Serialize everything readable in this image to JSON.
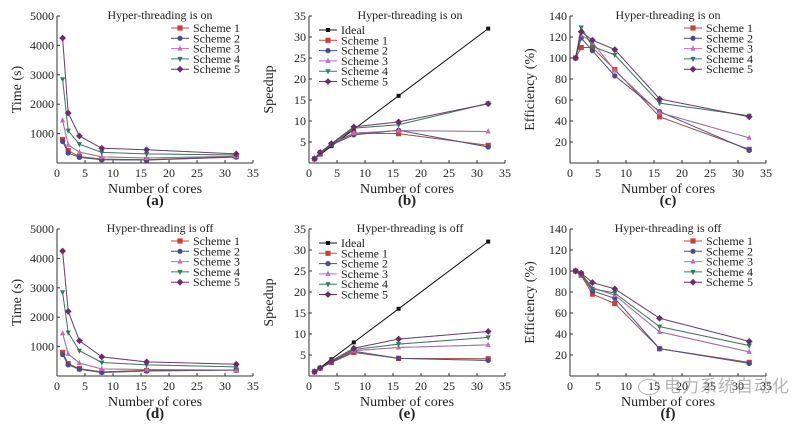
{
  "figure": {
    "watermark": "电力系统自动化"
  },
  "chart_data": [
    {
      "id": "a",
      "type": "line",
      "panel_label": "(a)",
      "title": "Hyper-threading is on",
      "xlabel": "Number of cores",
      "ylabel": "Time (s)",
      "xlim": [
        0,
        35
      ],
      "ylim": [
        0,
        5000
      ],
      "xticks": [
        0,
        5,
        10,
        15,
        20,
        25,
        30,
        35
      ],
      "yticks": [
        1000,
        2000,
        3000,
        4000,
        5000
      ],
      "legend_position": "top-right",
      "x": [
        1,
        2,
        4,
        8,
        16,
        32
      ],
      "series": [
        {
          "name": "Scheme 1",
          "color": "#c8423c",
          "marker": "square",
          "values": [
            800,
            420,
            220,
            130,
            110,
            220
          ]
        },
        {
          "name": "Scheme 2",
          "color": "#4a4a8c",
          "marker": "circle",
          "values": [
            730,
            340,
            190,
            110,
            100,
            200
          ]
        },
        {
          "name": "Scheme 3",
          "color": "#c46ab8",
          "marker": "triangle-up",
          "values": [
            1450,
            620,
            370,
            210,
            170,
            230
          ]
        },
        {
          "name": "Scheme 4",
          "color": "#2e7d5b",
          "marker": "triangle-down",
          "values": [
            2850,
            1100,
            640,
            360,
            310,
            270
          ]
        },
        {
          "name": "Scheme 5",
          "color": "#6b2c6b",
          "marker": "diamond",
          "values": [
            4250,
            1700,
            920,
            500,
            450,
            310
          ]
        }
      ]
    },
    {
      "id": "b",
      "type": "line",
      "panel_label": "(b)",
      "title": "Hyper-threading is on",
      "xlabel": "Number of cores",
      "ylabel": "Speedup",
      "xlim": [
        0,
        35
      ],
      "ylim": [
        0,
        35
      ],
      "xticks": [
        0,
        5,
        10,
        15,
        20,
        25,
        30,
        35
      ],
      "yticks": [
        5,
        10,
        15,
        20,
        25,
        30,
        35
      ],
      "legend_position": "top-left",
      "x": [
        1,
        2,
        4,
        8,
        16,
        32
      ],
      "series": [
        {
          "name": "Ideal",
          "color": "#111111",
          "marker": "square-small",
          "values": [
            1,
            2,
            4,
            8,
            16,
            32
          ]
        },
        {
          "name": "Scheme 1",
          "color": "#c8423c",
          "marker": "square",
          "values": [
            1,
            2.2,
            4.4,
            7.1,
            7.0,
            4.2
          ]
        },
        {
          "name": "Scheme 2",
          "color": "#4a4a8c",
          "marker": "circle",
          "values": [
            1,
            2.4,
            4.3,
            6.7,
            7.8,
            3.8
          ]
        },
        {
          "name": "Scheme 3",
          "color": "#c46ab8",
          "marker": "triangle-up",
          "values": [
            1,
            2.4,
            4.6,
            7.1,
            7.7,
            7.5
          ]
        },
        {
          "name": "Scheme 4",
          "color": "#2e7d5b",
          "marker": "triangle-down",
          "values": [
            1,
            2.6,
            4.4,
            8.3,
            9.1,
            14.2
          ]
        },
        {
          "name": "Scheme 5",
          "color": "#6b2c6b",
          "marker": "diamond",
          "values": [
            1,
            2.5,
            4.6,
            8.6,
            9.8,
            14.1
          ]
        }
      ]
    },
    {
      "id": "c",
      "type": "line",
      "panel_label": "(c)",
      "title": "Hyper-threading is on",
      "xlabel": "Number of cores",
      "ylabel": "Efficiency (%)",
      "xlim": [
        0,
        35
      ],
      "ylim": [
        0,
        140
      ],
      "xticks": [
        0,
        5,
        10,
        15,
        20,
        25,
        30,
        35
      ],
      "yticks": [
        20,
        40,
        60,
        80,
        100,
        120,
        140
      ],
      "legend_position": "top-right",
      "x": [
        1,
        2,
        4,
        8,
        16,
        32
      ],
      "series": [
        {
          "name": "Scheme 1",
          "color": "#c8423c",
          "marker": "square",
          "values": [
            100,
            110,
            110,
            89,
            44,
            13
          ]
        },
        {
          "name": "Scheme 2",
          "color": "#4a4a8c",
          "marker": "circle",
          "values": [
            100,
            119,
            107,
            83,
            49,
            12
          ]
        },
        {
          "name": "Scheme 3",
          "color": "#c46ab8",
          "marker": "triangle-up",
          "values": [
            100,
            122,
            115,
            88,
            48,
            24
          ]
        },
        {
          "name": "Scheme 4",
          "color": "#2e7d5b",
          "marker": "triangle-down",
          "values": [
            100,
            129,
            111,
            103,
            57,
            45
          ]
        },
        {
          "name": "Scheme 5",
          "color": "#6b2c6b",
          "marker": "diamond",
          "values": [
            100,
            125,
            117,
            108,
            61,
            44
          ]
        }
      ]
    },
    {
      "id": "d",
      "type": "line",
      "panel_label": "(d)",
      "title": "Hyper-threading is off",
      "xlabel": "Number of cores",
      "ylabel": "Time (s)",
      "xlim": [
        0,
        35
      ],
      "ylim": [
        0,
        5000
      ],
      "xticks": [
        0,
        5,
        10,
        15,
        20,
        25,
        30,
        35
      ],
      "yticks": [
        1000,
        2000,
        3000,
        4000,
        5000
      ],
      "legend_position": "top-right",
      "x": [
        1,
        2,
        4,
        8,
        16,
        32
      ],
      "series": [
        {
          "name": "Scheme 1",
          "color": "#c8423c",
          "marker": "square",
          "values": [
            800,
            420,
            250,
            140,
            190,
            200
          ]
        },
        {
          "name": "Scheme 2",
          "color": "#4a4a8c",
          "marker": "circle",
          "values": [
            730,
            380,
            230,
            120,
            170,
            200
          ]
        },
        {
          "name": "Scheme 3",
          "color": "#c46ab8",
          "marker": "triangle-up",
          "values": [
            1450,
            750,
            440,
            240,
            220,
            200
          ]
        },
        {
          "name": "Scheme 4",
          "color": "#2e7d5b",
          "marker": "triangle-down",
          "values": [
            2850,
            1480,
            860,
            460,
            380,
            310
          ]
        },
        {
          "name": "Scheme 5",
          "color": "#6b2c6b",
          "marker": "diamond",
          "values": [
            4250,
            2200,
            1200,
            650,
            480,
            400
          ]
        }
      ]
    },
    {
      "id": "e",
      "type": "line",
      "panel_label": "(e)",
      "title": "Hyper-threading is off",
      "xlabel": "Number of cores",
      "ylabel": "Speedup",
      "xlim": [
        0,
        35
      ],
      "ylim": [
        0,
        35
      ],
      "xticks": [
        0,
        5,
        10,
        15,
        20,
        25,
        30,
        35
      ],
      "yticks": [
        5,
        10,
        15,
        20,
        25,
        30,
        35
      ],
      "legend_position": "top-left",
      "x": [
        1,
        2,
        4,
        8,
        16,
        32
      ],
      "series": [
        {
          "name": "Ideal",
          "color": "#111111",
          "marker": "square-small",
          "values": [
            1,
            2,
            4,
            8,
            16,
            32
          ]
        },
        {
          "name": "Scheme 1",
          "color": "#c8423c",
          "marker": "square",
          "values": [
            1,
            1.9,
            3.2,
            5.6,
            4.2,
            4.1
          ]
        },
        {
          "name": "Scheme 2",
          "color": "#4a4a8c",
          "marker": "circle",
          "values": [
            1,
            1.9,
            3.3,
            5.9,
            4.2,
            3.7
          ]
        },
        {
          "name": "Scheme 3",
          "color": "#c46ab8",
          "marker": "triangle-up",
          "values": [
            1,
            1.9,
            3.4,
            6.0,
            6.8,
            7.4
          ]
        },
        {
          "name": "Scheme 4",
          "color": "#2e7d5b",
          "marker": "triangle-down",
          "values": [
            1,
            1.9,
            3.3,
            6.3,
            7.6,
            9.2
          ]
        },
        {
          "name": "Scheme 5",
          "color": "#6b2c6b",
          "marker": "diamond",
          "values": [
            1,
            1.9,
            3.6,
            6.6,
            8.8,
            10.6
          ]
        }
      ]
    },
    {
      "id": "f",
      "type": "line",
      "panel_label": "(f)",
      "title": "Hyper-threading is off",
      "xlabel": "Number of cores",
      "ylabel": "Efficiency (%)",
      "xlim": [
        0,
        35
      ],
      "ylim": [
        0,
        140
      ],
      "xticks": [
        0,
        5,
        10,
        15,
        20,
        25,
        30,
        35
      ],
      "yticks": [
        20,
        40,
        60,
        80,
        100,
        120,
        140
      ],
      "legend_position": "top-right",
      "x": [
        1,
        2,
        4,
        8,
        16,
        32
      ],
      "series": [
        {
          "name": "Scheme 1",
          "color": "#c8423c",
          "marker": "square",
          "values": [
            100,
            96,
            78,
            69,
            26,
            13
          ]
        },
        {
          "name": "Scheme 2",
          "color": "#4a4a8c",
          "marker": "circle",
          "values": [
            100,
            97,
            81,
            74,
            26,
            12
          ]
        },
        {
          "name": "Scheme 3",
          "color": "#c46ab8",
          "marker": "triangle-up",
          "values": [
            100,
            97,
            84,
            77,
            42,
            23
          ]
        },
        {
          "name": "Scheme 4",
          "color": "#2e7d5b",
          "marker": "triangle-down",
          "values": [
            100,
            98,
            83,
            79,
            47,
            29
          ]
        },
        {
          "name": "Scheme 5",
          "color": "#6b2c6b",
          "marker": "diamond",
          "values": [
            100,
            98,
            89,
            83,
            55,
            33
          ]
        }
      ]
    }
  ]
}
